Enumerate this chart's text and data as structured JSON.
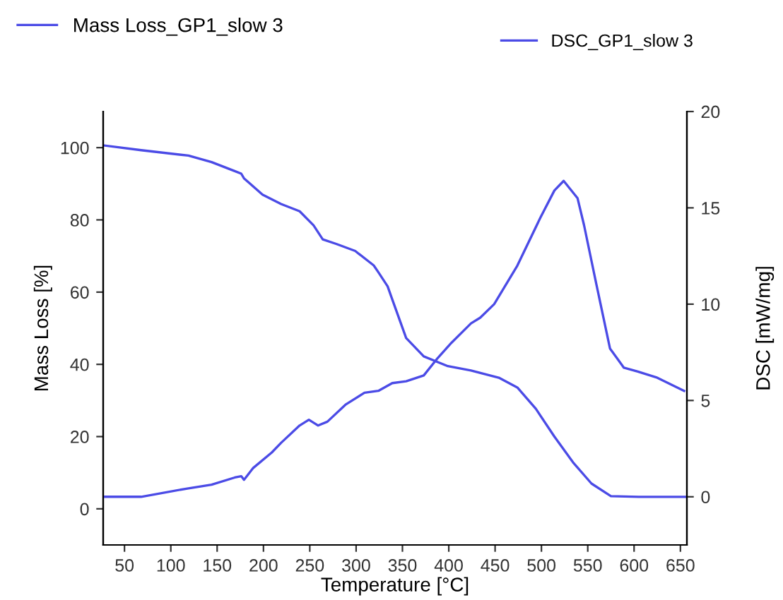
{
  "chart_data": {
    "type": "line",
    "xlabel": "Temperature [°C]",
    "ylabel": "Mass Loss [%]",
    "y2label": "DSC [mW/mg]",
    "xlim": [
      27,
      657
    ],
    "xticks": [
      50,
      100,
      150,
      200,
      250,
      300,
      350,
      400,
      450,
      500,
      550,
      600,
      650
    ],
    "ylim": [
      -10,
      110
    ],
    "yticks": [
      0,
      20,
      40,
      60,
      80,
      100
    ],
    "y2lim": [
      -2.5,
      20
    ],
    "y2ticks": [
      0,
      5,
      10,
      15,
      20
    ],
    "legend": "top",
    "grid": false,
    "marker": "none",
    "line_style": "solid",
    "series": [
      {
        "name": "Mass Loss_GP1_slow 3",
        "color": "#4b4be6",
        "x": [
          28,
          68,
          119,
          144,
          169,
          176,
          179,
          199,
          219,
          239,
          254,
          264,
          279,
          299,
          319,
          324,
          334,
          339,
          354,
          373,
          399,
          424,
          454,
          474,
          494,
          514,
          534,
          554,
          575,
          605,
          655
        ],
        "values": [
          100.6,
          99.3,
          97.8,
          96,
          93.5,
          92.8,
          91.5,
          87,
          84.4,
          82.4,
          78.5,
          74.6,
          73.3,
          71.4,
          67.4,
          65.5,
          61.6,
          58,
          47.3,
          42.2,
          39.5,
          38.3,
          36.3,
          33.6,
          27.7,
          20,
          12.9,
          7,
          3.5,
          3.3,
          3.3
        ]
      },
      {
        "name": "DSC_GP1_slow 3",
        "color": "#4b4be6",
        "axis": "y2",
        "x": [
          28,
          68,
          119,
          144,
          169,
          176,
          179,
          189,
          209,
          219,
          239,
          249,
          259,
          269,
          289,
          309,
          324,
          339,
          354,
          373,
          388,
          403,
          424,
          434,
          449,
          474,
          499,
          514,
          524,
          539,
          546,
          559,
          574,
          589,
          604,
          624,
          654
        ],
        "values": [
          0,
          0,
          0.44,
          0.63,
          1.0,
          1.07,
          0.88,
          1.5,
          2.3,
          2.8,
          3.7,
          4.0,
          3.7,
          3.9,
          4.8,
          5.4,
          5.5,
          5.9,
          6.0,
          6.3,
          7.2,
          8.0,
          9.0,
          9.3,
          10.0,
          12.0,
          14.5,
          15.9,
          16.4,
          15.5,
          14.1,
          11.1,
          7.7,
          6.7,
          6.5,
          6.2,
          5.5
        ]
      }
    ]
  }
}
